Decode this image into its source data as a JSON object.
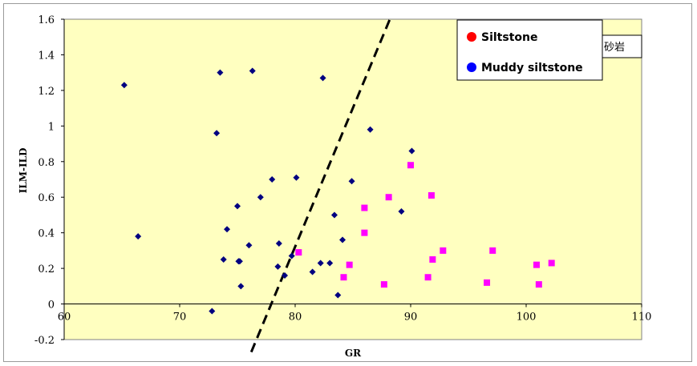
{
  "chart_data": {
    "type": "scatter",
    "title": "",
    "xlabel": "GR",
    "ylabel": "ILM-ILD",
    "xlim": [
      60,
      110
    ],
    "ylim": [
      -0.2,
      1.6
    ],
    "x_ticks": [
      "60",
      "70",
      "80",
      "90",
      "100",
      "110"
    ],
    "y_ticks": [
      "1.6",
      "1.4",
      "1.2",
      "1",
      "0.8",
      "0.6",
      "0.4",
      "0.2",
      "0",
      "-0.2"
    ],
    "grid": false,
    "plot_background": "#ffffc0",
    "legend_position": "top-right",
    "legend_items": [
      {
        "label": "Siltstone",
        "color": "#ff0000"
      },
      {
        "label": "Muddy siltstone",
        "color": "#0000ff"
      }
    ],
    "note": "砂岩",
    "series": [
      {
        "marker": "diamond",
        "color": "#000080",
        "points": [
          [
            65.2,
            1.23
          ],
          [
            66.4,
            0.38
          ],
          [
            72.8,
            -0.04
          ],
          [
            73.2,
            0.96
          ],
          [
            73.5,
            1.3
          ],
          [
            73.8,
            0.25
          ],
          [
            74.1,
            0.42
          ],
          [
            75.0,
            0.55
          ],
          [
            75.1,
            0.24
          ],
          [
            75.2,
            0.24
          ],
          [
            75.3,
            0.1
          ],
          [
            76.0,
            0.33
          ],
          [
            76.3,
            1.31
          ],
          [
            77.0,
            0.6
          ],
          [
            78.0,
            0.7
          ],
          [
            78.5,
            0.21
          ],
          [
            78.6,
            0.34
          ],
          [
            79.1,
            0.16
          ],
          [
            79.7,
            0.27
          ],
          [
            80.1,
            0.71
          ],
          [
            81.5,
            0.18
          ],
          [
            82.2,
            0.23
          ],
          [
            82.4,
            1.27
          ],
          [
            83.0,
            0.23
          ],
          [
            83.4,
            0.5
          ],
          [
            83.7,
            0.05
          ],
          [
            84.1,
            0.36
          ],
          [
            84.9,
            0.69
          ],
          [
            86.5,
            0.98
          ],
          [
            89.2,
            0.52
          ],
          [
            90.1,
            0.86
          ]
        ]
      },
      {
        "marker": "square",
        "color": "#ff00ff",
        "points": [
          [
            80.3,
            0.29
          ],
          [
            84.2,
            0.15
          ],
          [
            84.7,
            0.22
          ],
          [
            86.0,
            0.54
          ],
          [
            86.0,
            0.4
          ],
          [
            87.7,
            0.11
          ],
          [
            88.1,
            0.6
          ],
          [
            90.0,
            0.78
          ],
          [
            91.5,
            0.15
          ],
          [
            91.8,
            0.61
          ],
          [
            91.9,
            0.25
          ],
          [
            92.8,
            0.3
          ],
          [
            96.6,
            0.12
          ],
          [
            97.1,
            0.3
          ],
          [
            100.9,
            0.22
          ],
          [
            101.1,
            0.11
          ],
          [
            102.2,
            0.23
          ]
        ]
      }
    ],
    "boundary_line": {
      "style": "dashed",
      "color": "#000000",
      "points": [
        [
          76.2,
          -0.27
        ],
        [
          88.2,
          1.6
        ]
      ]
    }
  }
}
